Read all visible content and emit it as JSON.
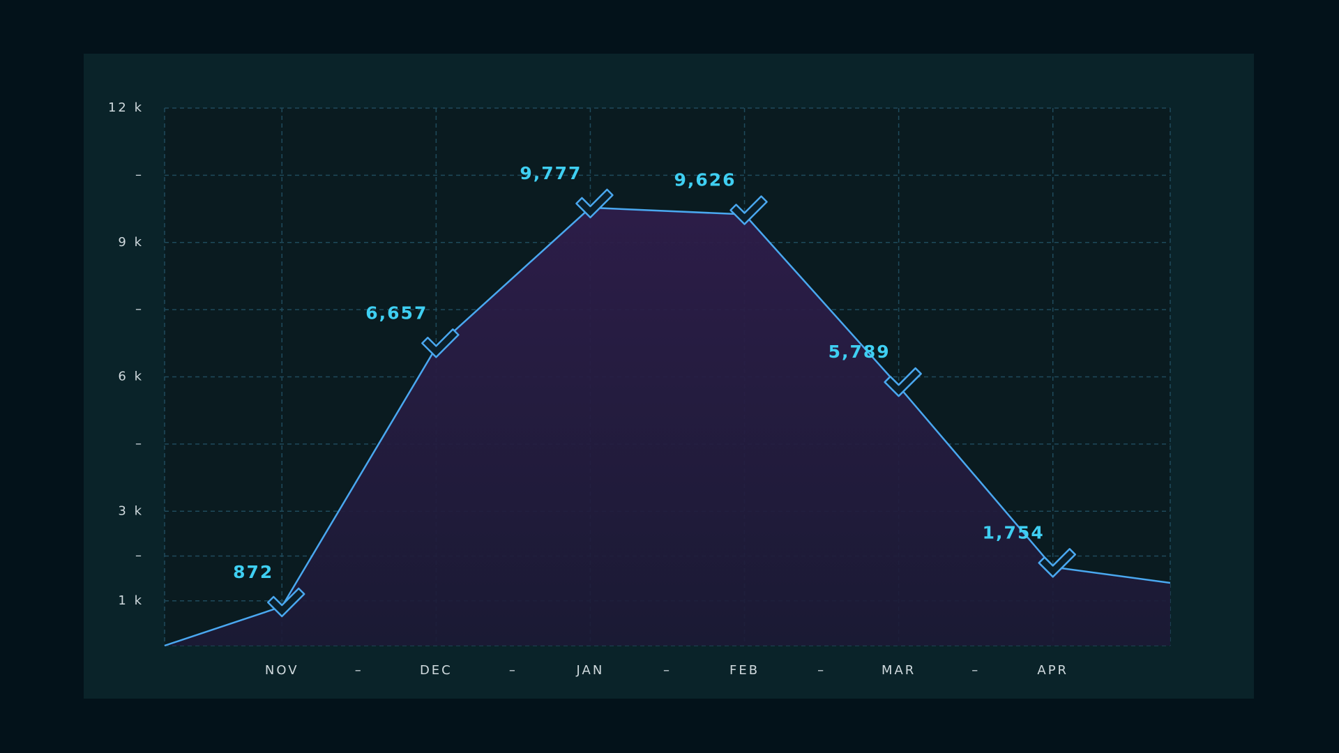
{
  "chart_data": {
    "type": "area",
    "categories": [
      null,
      "NOV",
      "DEC",
      "JAN",
      "FEB",
      "MAR",
      "APR",
      null
    ],
    "x_minor_labels": [
      "–",
      "–",
      "–",
      "–",
      "–"
    ],
    "values": [
      0,
      872,
      6657,
      9777,
      9626,
      5789,
      1754,
      1400
    ],
    "value_labels": [
      null,
      "872",
      "6,657",
      "9,777",
      "9,626",
      "5,789",
      "1,754",
      null
    ],
    "color": "#4aa8f0",
    "ylim": [
      0,
      12000
    ],
    "yticks": [
      {
        "value": 1000,
        "label": "1 k"
      },
      {
        "value": 2000,
        "label": "–"
      },
      {
        "value": 3000,
        "label": "3 k"
      },
      {
        "value": 4500,
        "label": "–"
      },
      {
        "value": 6000,
        "label": "6 k"
      },
      {
        "value": 7500,
        "label": "–"
      },
      {
        "value": 9000,
        "label": "9 k"
      },
      {
        "value": 10500,
        "label": "–"
      },
      {
        "value": 12000,
        "label": "12 k"
      }
    ],
    "grid": true
  }
}
